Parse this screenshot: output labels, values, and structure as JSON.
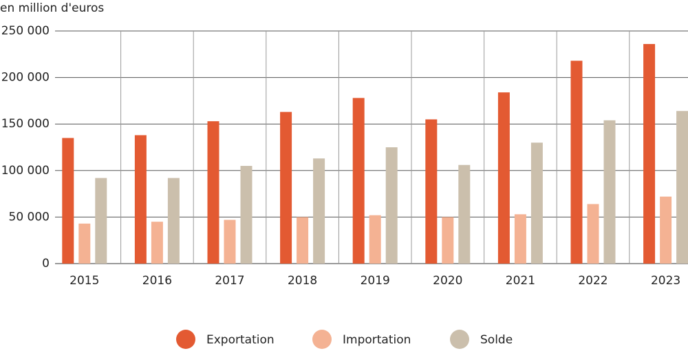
{
  "chart_data": {
    "type": "bar",
    "subtitle": "en million d'euros",
    "categories": [
      "2015",
      "2016",
      "2017",
      "2018",
      "2019",
      "2020",
      "2021",
      "2022",
      "2023"
    ],
    "series": [
      {
        "name": "Exportation",
        "color": "#e35a32",
        "values": [
          135000,
          138000,
          153000,
          163000,
          178000,
          155000,
          184000,
          218000,
          236000
        ]
      },
      {
        "name": "Importation",
        "color": "#f4b293",
        "values": [
          43000,
          45000,
          47000,
          50000,
          52000,
          50000,
          53000,
          64000,
          72000
        ]
      },
      {
        "name": "Solde",
        "color": "#cbbfac",
        "values": [
          92000,
          92000,
          105000,
          113000,
          125000,
          106000,
          130000,
          154000,
          164000
        ]
      }
    ],
    "ylim": [
      0,
      250000
    ],
    "yticks": [
      0,
      {
        "value": 50000,
        "label": "50 000"
      },
      {
        "value": 100000,
        "label": "100 000"
      },
      {
        "value": 150000,
        "label": "150 000"
      },
      {
        "value": 200000,
        "label": "200 000"
      },
      {
        "value": 250000,
        "label": "250 000"
      }
    ],
    "grid": true
  }
}
